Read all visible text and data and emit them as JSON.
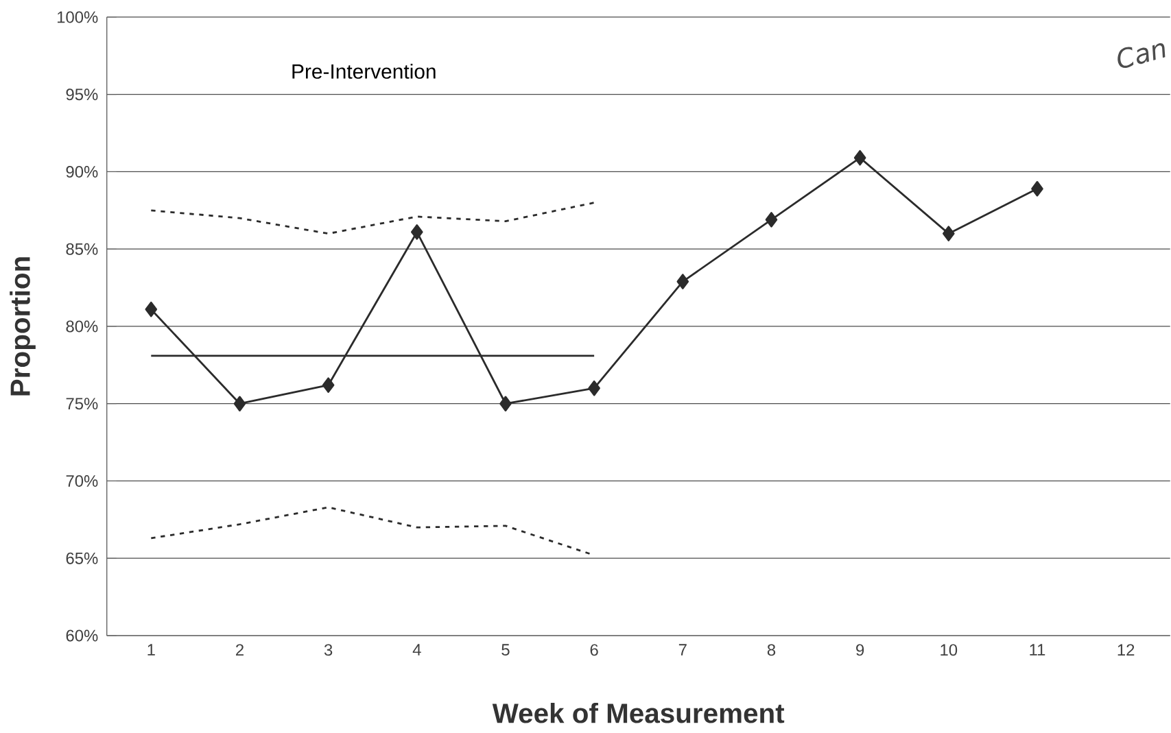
{
  "chart_data": {
    "type": "line",
    "xlabel": "Week of Measurement",
    "ylabel": "Proportion",
    "annotations": [
      "Pre-Intervention",
      "Can"
    ],
    "categories": [
      "1",
      "2",
      "3",
      "4",
      "5",
      "6",
      "7",
      "8",
      "9",
      "10",
      "11",
      "12"
    ],
    "series": [
      {
        "color": "#2b2b2b",
        "marker": "diamond",
        "line_style": "solid",
        "values": [
          81.1,
          75.0,
          76.2,
          86.1,
          75.0,
          76.0,
          82.9,
          86.9,
          90.9,
          86.0,
          88.9,
          null
        ]
      },
      {
        "color": "#2b2b2b",
        "marker": "none",
        "line_style": "solid",
        "values": [
          78.1,
          78.1,
          78.1,
          78.1,
          78.1,
          78.1,
          null,
          null,
          null,
          null,
          null,
          null
        ]
      },
      {
        "color": "#2b2b2b",
        "marker": "none",
        "line_style": "dashed",
        "values": [
          87.5,
          87.0,
          86.0,
          87.1,
          86.8,
          88.0,
          null,
          null,
          null,
          null,
          null,
          null
        ]
      },
      {
        "color": "#2b2b2b",
        "marker": "none",
        "line_style": "dashed",
        "values": [
          66.3,
          67.2,
          68.3,
          67.0,
          67.1,
          65.2,
          null,
          null,
          null,
          null,
          null,
          null
        ]
      }
    ],
    "ylim": [
      60,
      100
    ],
    "yticks": [
      {
        "value": 60,
        "label": "60%"
      },
      {
        "value": 65,
        "label": "65%"
      },
      {
        "value": 70,
        "label": "70%"
      },
      {
        "value": 75,
        "label": "75%"
      },
      {
        "value": 80,
        "label": "80%"
      },
      {
        "value": 85,
        "label": "85%"
      },
      {
        "value": 90,
        "label": "90%"
      },
      {
        "value": 95,
        "label": "95%"
      },
      {
        "value": 100,
        "label": "100%"
      }
    ],
    "grid": "y"
  }
}
